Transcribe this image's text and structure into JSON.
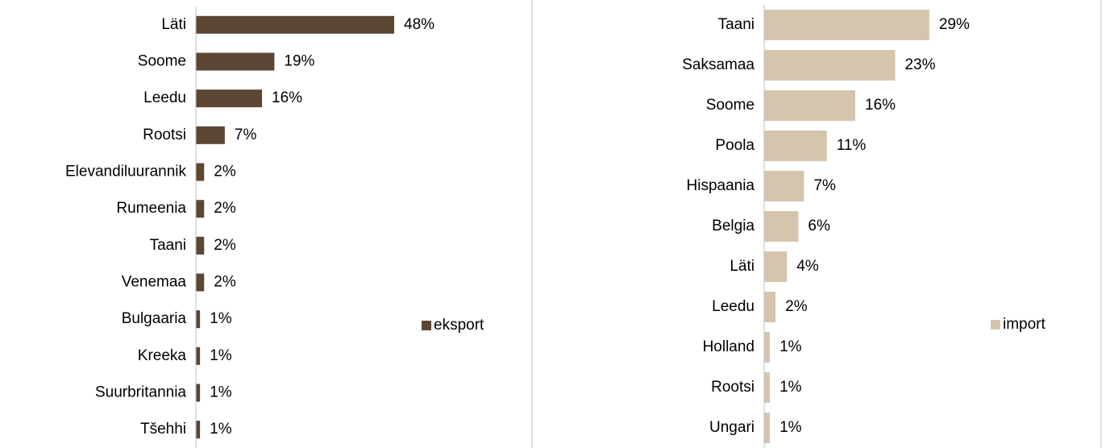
{
  "chart_data": [
    {
      "type": "bar",
      "orientation": "horizontal",
      "categories": [
        "Läti",
        "Soome",
        "Leedu",
        "Rootsi",
        "Elevandiluurannik",
        "Rumeenia",
        "Taani",
        "Venemaa",
        "Bulgaaria",
        "Kreeka",
        "Suurbritannia",
        "Tšehhi"
      ],
      "series": [
        {
          "name": "eksport",
          "color": "#5c4634",
          "values": [
            48,
            19,
            16,
            7,
            2,
            2,
            2,
            2,
            1,
            1,
            1,
            1
          ],
          "value_labels": [
            "48%",
            "19%",
            "16%",
            "7%",
            "2%",
            "2%",
            "2%",
            "2%",
            "1%",
            "1%",
            "1%",
            "1%"
          ]
        }
      ],
      "legend": "right"
    },
    {
      "type": "bar",
      "orientation": "horizontal",
      "categories": [
        "Taani",
        "Saksamaa",
        "Soome",
        "Poola",
        "Hispaania",
        "Belgia",
        "Läti",
        "Leedu",
        "Holland",
        "Rootsi",
        "Ungari"
      ],
      "series": [
        {
          "name": "import",
          "color": "#d6c5ad",
          "values": [
            29,
            23,
            16,
            11,
            7,
            6,
            4,
            2,
            1,
            1,
            1
          ],
          "value_labels": [
            "29%",
            "23%",
            "16%",
            "11%",
            "7%",
            "6%",
            "4%",
            "2%",
            "1%",
            "1%",
            "1%"
          ]
        }
      ],
      "legend": "right"
    }
  ]
}
